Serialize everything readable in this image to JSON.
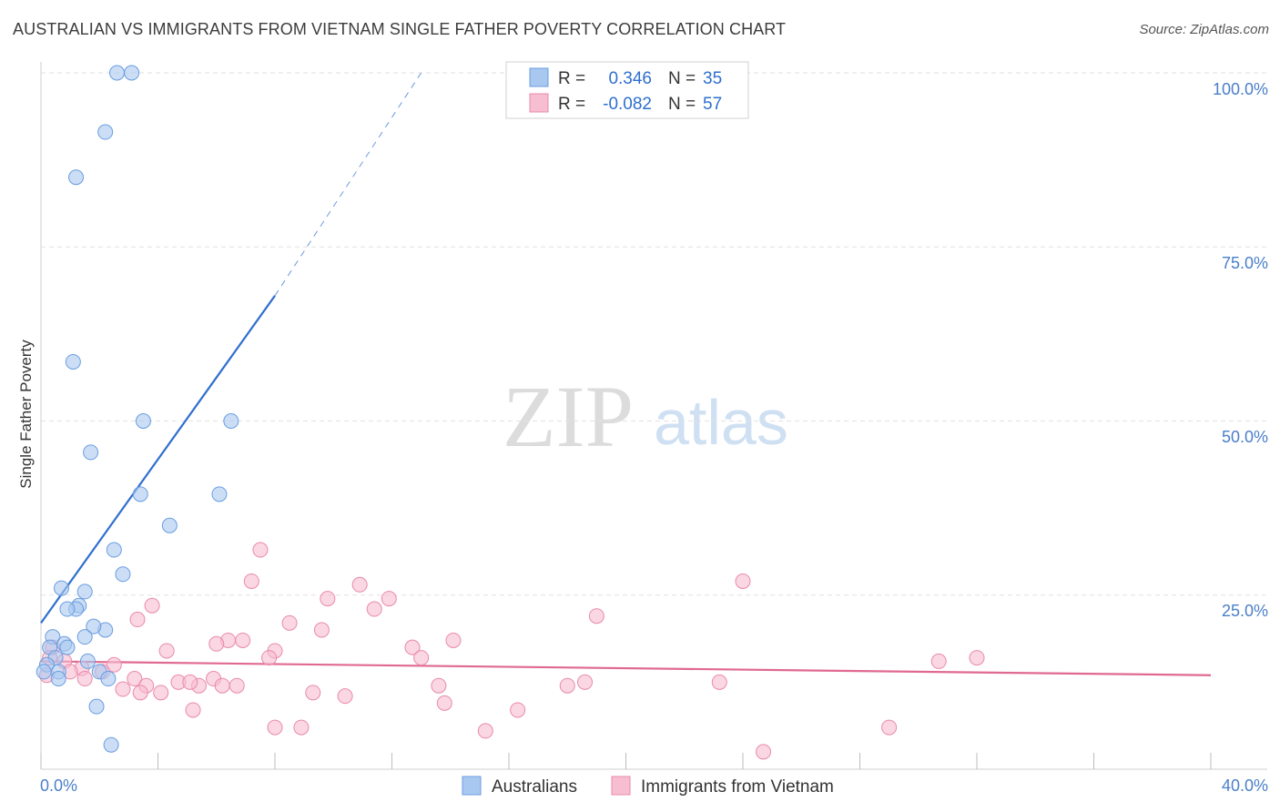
{
  "title": "AUSTRALIAN VS IMMIGRANTS FROM VIETNAM SINGLE FATHER POVERTY CORRELATION CHART",
  "source": "Source: ZipAtlas.com",
  "watermark": {
    "zip": "ZIP",
    "atlas": "atlas"
  },
  "legend": {
    "r_label": "R =",
    "n_label": "N =",
    "rows": [
      {
        "r": "0.346",
        "n": "35",
        "color": "#a9c8f0",
        "stroke": "#6a9de0"
      },
      {
        "r": "-0.082",
        "n": "57",
        "color": "#f7bdd0",
        "stroke": "#e98aaa"
      }
    ]
  },
  "chart_data": {
    "type": "scatter",
    "title": "AUSTRALIAN VS IMMIGRANTS FROM VIETNAM SINGLE FATHER POVERTY CORRELATION CHART",
    "xlabel": "",
    "ylabel": "Single Father Poverty",
    "xlim": [
      0,
      40
    ],
    "ylim": [
      0,
      100
    ],
    "x_tick_labels": [
      "0.0%",
      "40.0%"
    ],
    "y_tick_labels": [
      "100.0%",
      "75.0%",
      "50.0%",
      "25.0%"
    ],
    "y_tick_values": [
      100,
      75,
      50,
      25
    ],
    "series": [
      {
        "name": "Australians",
        "color": "#a9c8f0",
        "stroke": "#6a9de0",
        "line_color": "#2f6fce",
        "trend": {
          "x0": 0,
          "y0": 21,
          "x1": 8,
          "y1": 68,
          "dash_x1": 13,
          "dash_y1": 100
        },
        "points": [
          [
            2.6,
            100
          ],
          [
            3.1,
            100
          ],
          [
            2.2,
            91.5
          ],
          [
            1.2,
            85
          ],
          [
            1.1,
            58.5
          ],
          [
            1.7,
            45.5
          ],
          [
            3.5,
            50
          ],
          [
            6.5,
            50
          ],
          [
            3.4,
            39.5
          ],
          [
            6.1,
            39.5
          ],
          [
            4.4,
            35
          ],
          [
            2.5,
            31.5
          ],
          [
            2.8,
            28
          ],
          [
            0.7,
            26
          ],
          [
            1.5,
            25.5
          ],
          [
            1.3,
            23.5
          ],
          [
            1.2,
            23
          ],
          [
            0.9,
            23
          ],
          [
            2.2,
            20
          ],
          [
            1.8,
            20.5
          ],
          [
            0.4,
            19
          ],
          [
            0.8,
            18
          ],
          [
            1.5,
            19
          ],
          [
            0.3,
            17.5
          ],
          [
            0.9,
            17.5
          ],
          [
            0.5,
            16
          ],
          [
            1.6,
            15.5
          ],
          [
            0.2,
            15
          ],
          [
            0.6,
            14
          ],
          [
            2.0,
            14
          ],
          [
            0.1,
            14
          ],
          [
            2.3,
            13
          ],
          [
            0.6,
            13
          ],
          [
            1.9,
            9
          ],
          [
            2.4,
            3.5
          ]
        ]
      },
      {
        "name": "Immigrants from Vietnam",
        "color": "#f7bdd0",
        "stroke": "#e98aaa",
        "line_color": "#e0698f",
        "trend": {
          "x0": 0,
          "y0": 15.5,
          "x1": 40,
          "y1": 13.5
        },
        "points": [
          [
            7.5,
            31.5
          ],
          [
            7.2,
            27
          ],
          [
            24,
            27
          ],
          [
            10.9,
            26.5
          ],
          [
            9.8,
            24.5
          ],
          [
            11.9,
            24.5
          ],
          [
            3.8,
            23.5
          ],
          [
            11.4,
            23
          ],
          [
            19,
            22
          ],
          [
            3.3,
            21.5
          ],
          [
            8.5,
            21
          ],
          [
            9.6,
            20
          ],
          [
            6.4,
            18.5
          ],
          [
            6.9,
            18.5
          ],
          [
            14.1,
            18.5
          ],
          [
            6.0,
            18
          ],
          [
            12.7,
            17.5
          ],
          [
            4.3,
            17
          ],
          [
            8.0,
            17
          ],
          [
            7.8,
            16
          ],
          [
            13.0,
            16
          ],
          [
            30.7,
            15.5
          ],
          [
            32,
            16
          ],
          [
            0.4,
            17.5
          ],
          [
            0.8,
            15.5
          ],
          [
            2.5,
            15
          ],
          [
            1.4,
            14.5
          ],
          [
            2.1,
            14
          ],
          [
            0.2,
            13.5
          ],
          [
            1.0,
            14
          ],
          [
            1.5,
            13
          ],
          [
            3.2,
            13
          ],
          [
            3.6,
            12
          ],
          [
            4.7,
            12.5
          ],
          [
            5.4,
            12
          ],
          [
            5.1,
            12.5
          ],
          [
            5.9,
            13
          ],
          [
            6.2,
            12
          ],
          [
            6.7,
            12
          ],
          [
            2.8,
            11.5
          ],
          [
            3.4,
            11
          ],
          [
            4.1,
            11
          ],
          [
            9.3,
            11
          ],
          [
            10.4,
            10.5
          ],
          [
            13.6,
            12
          ],
          [
            18.0,
            12
          ],
          [
            18.6,
            12.5
          ],
          [
            23.2,
            12.5
          ],
          [
            13.8,
            9.5
          ],
          [
            5.2,
            8.5
          ],
          [
            16.3,
            8.5
          ],
          [
            8.0,
            6
          ],
          [
            8.9,
            6
          ],
          [
            15.2,
            5.5
          ],
          [
            29.0,
            6
          ],
          [
            24.7,
            2.5
          ],
          [
            0.3,
            16
          ]
        ]
      }
    ]
  }
}
